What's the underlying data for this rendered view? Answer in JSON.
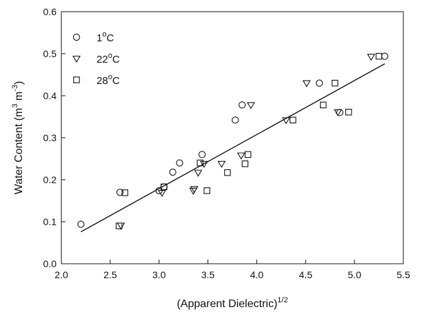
{
  "chart_data": {
    "type": "scatter",
    "xlabel": "(Apparent Dielectric)",
    "xlabel_sup": "1/2",
    "ylabel": "Water Content (m",
    "ylabel_sup1": "3",
    "ylabel_mid": " m",
    "ylabel_sup2": "-3",
    "ylabel_end": ")",
    "xlim": [
      2.0,
      5.5
    ],
    "ylim": [
      0.0,
      0.6
    ],
    "xticks": [
      "2.0",
      "2.5",
      "3.0",
      "3.5",
      "4.0",
      "4.5",
      "5.0",
      "5.5"
    ],
    "yticks": [
      "0.0",
      "0.1",
      "0.2",
      "0.3",
      "0.4",
      "0.5",
      "0.6"
    ],
    "grid": false,
    "legend_position": "top-left",
    "series": [
      {
        "name": "1",
        "name_sup": "o",
        "name_unit": "C",
        "marker": "circle",
        "points": [
          [
            2.2,
            0.094
          ],
          [
            2.6,
            0.17
          ],
          [
            3.0,
            0.174
          ],
          [
            3.05,
            0.183
          ],
          [
            3.14,
            0.218
          ],
          [
            3.21,
            0.24
          ],
          [
            3.44,
            0.26
          ],
          [
            3.78,
            0.342
          ],
          [
            3.85,
            0.378
          ],
          [
            4.64,
            0.43
          ],
          [
            4.85,
            0.36
          ],
          [
            5.31,
            0.494
          ]
        ]
      },
      {
        "name": "22",
        "name_sup": "o",
        "name_unit": "C",
        "marker": "triangle-down",
        "points": [
          [
            2.61,
            0.091
          ],
          [
            3.03,
            0.169
          ],
          [
            3.35,
            0.174
          ],
          [
            3.36,
            0.178
          ],
          [
            3.4,
            0.217
          ],
          [
            3.46,
            0.238
          ],
          [
            3.64,
            0.238
          ],
          [
            3.84,
            0.258
          ],
          [
            3.94,
            0.378
          ],
          [
            4.3,
            0.342
          ],
          [
            4.51,
            0.43
          ],
          [
            4.83,
            0.361
          ],
          [
            5.17,
            0.493
          ]
        ]
      },
      {
        "name": "28",
        "name_sup": "o",
        "name_unit": "C",
        "marker": "square",
        "points": [
          [
            2.59,
            0.09
          ],
          [
            2.65,
            0.169
          ],
          [
            3.05,
            0.183
          ],
          [
            3.42,
            0.24
          ],
          [
            3.49,
            0.174
          ],
          [
            3.7,
            0.217
          ],
          [
            3.88,
            0.238
          ],
          [
            3.91,
            0.26
          ],
          [
            4.37,
            0.342
          ],
          [
            4.68,
            0.378
          ],
          [
            4.8,
            0.43
          ],
          [
            4.94,
            0.361
          ],
          [
            5.25,
            0.494
          ]
        ]
      }
    ],
    "fit_line": {
      "x": [
        2.2,
        5.31
      ],
      "y": [
        0.076,
        0.476
      ]
    }
  }
}
